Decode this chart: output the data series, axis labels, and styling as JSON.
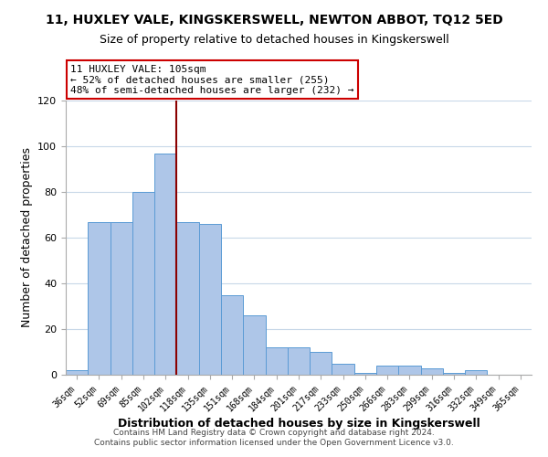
{
  "title_main": "11, HUXLEY VALE, KINGSKERSWELL, NEWTON ABBOT, TQ12 5ED",
  "title_sub": "Size of property relative to detached houses in Kingskerswell",
  "xlabel": "Distribution of detached houses by size in Kingskerswell",
  "ylabel": "Number of detached properties",
  "footer1": "Contains HM Land Registry data © Crown copyright and database right 2024.",
  "footer2": "Contains public sector information licensed under the Open Government Licence v3.0.",
  "categories": [
    "36sqm",
    "52sqm",
    "69sqm",
    "85sqm",
    "102sqm",
    "118sqm",
    "135sqm",
    "151sqm",
    "168sqm",
    "184sqm",
    "201sqm",
    "217sqm",
    "233sqm",
    "250sqm",
    "266sqm",
    "283sqm",
    "299sqm",
    "316sqm",
    "332sqm",
    "349sqm",
    "365sqm"
  ],
  "bar_values": [
    2,
    67,
    67,
    80,
    97,
    67,
    66,
    35,
    26,
    12,
    12,
    10,
    5,
    1,
    4,
    4,
    3,
    1,
    2,
    0,
    0
  ],
  "bar_color": "#aec6e8",
  "bar_edge_color": "#5b9bd5",
  "vline_x_index": 4,
  "vline_color": "#8b0000",
  "annotation_title": "11 HUXLEY VALE: 105sqm",
  "annotation_line1": "← 52% of detached houses are smaller (255)",
  "annotation_line2": "48% of semi-detached houses are larger (232) →",
  "annotation_box_color": "#ffffff",
  "annotation_box_edge": "#cc0000",
  "ylim": [
    0,
    120
  ],
  "yticks": [
    0,
    20,
    40,
    60,
    80,
    100,
    120
  ],
  "background_color": "#ffffff",
  "grid_color": "#c8d8e8",
  "title_fontsize": 10,
  "subtitle_fontsize": 9,
  "xlabel_fontsize": 9,
  "ylabel_fontsize": 9,
  "tick_fontsize": 7,
  "annotation_fontsize": 8,
  "footer_fontsize": 6.5
}
